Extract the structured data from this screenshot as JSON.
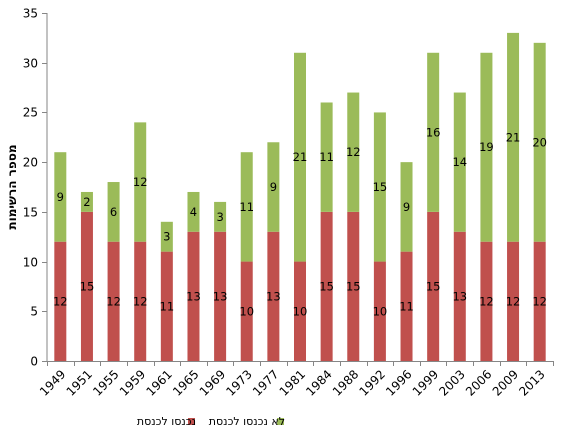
{
  "chart_data": {
    "type": "bar",
    "stacked": true,
    "title": "",
    "xlabel": "",
    "ylabel": "מספר הרשימות",
    "ylim": [
      0,
      35
    ],
    "yticks": [
      0,
      5,
      10,
      15,
      20,
      25,
      30,
      35
    ],
    "grid": false,
    "legend_position": "bottom",
    "categories": [
      "1949",
      "1951",
      "1955",
      "1959",
      "1961",
      "1965",
      "1969",
      "1973",
      "1977",
      "1981",
      "1984",
      "1988",
      "1992",
      "1996",
      "1999",
      "2003",
      "2006",
      "2009",
      "2013"
    ],
    "series": [
      {
        "name": "נכנסו לכנסת",
        "color": "#c0504d",
        "values": [
          12,
          15,
          12,
          12,
          11,
          13,
          13,
          10,
          13,
          10,
          15,
          15,
          10,
          11,
          15,
          13,
          12,
          12,
          12
        ]
      },
      {
        "name": "לא נכנסו לכנסת",
        "color": "#9bbb59",
        "values": [
          9,
          2,
          6,
          12,
          3,
          4,
          3,
          11,
          9,
          21,
          11,
          12,
          15,
          9,
          16,
          14,
          19,
          21,
          20
        ]
      }
    ]
  }
}
